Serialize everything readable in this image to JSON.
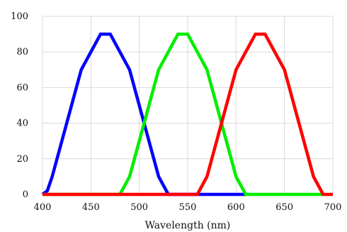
{
  "chart_data": {
    "type": "line",
    "title": "",
    "xlabel": "Wavelength (nm)",
    "ylabel": "",
    "xlim": [
      400,
      700
    ],
    "ylim": [
      0,
      100
    ],
    "x_ticks": [
      400,
      450,
      500,
      550,
      600,
      650,
      700
    ],
    "y_ticks": [
      0,
      20,
      40,
      60,
      80,
      100
    ],
    "grid": true,
    "series": [
      {
        "color": "#0000ff",
        "points": [
          [
            400,
            0
          ],
          [
            405,
            2
          ],
          [
            410,
            10
          ],
          [
            425,
            40
          ],
          [
            440,
            70
          ],
          [
            460,
            90
          ],
          [
            470,
            90
          ],
          [
            490,
            70
          ],
          [
            505,
            40
          ],
          [
            520,
            10
          ],
          [
            530,
            0
          ],
          [
            610,
            0
          ]
        ]
      },
      {
        "color": "#00ee00",
        "points": [
          [
            400,
            0
          ],
          [
            480,
            0
          ],
          [
            490,
            10
          ],
          [
            505,
            40
          ],
          [
            520,
            70
          ],
          [
            540,
            90
          ],
          [
            550,
            90
          ],
          [
            570,
            70
          ],
          [
            585,
            40
          ],
          [
            600,
            10
          ],
          [
            610,
            0
          ],
          [
            690,
            0
          ]
        ]
      },
      {
        "color": "#ff0000",
        "points": [
          [
            400,
            0
          ],
          [
            560,
            0
          ],
          [
            570,
            10
          ],
          [
            585,
            40
          ],
          [
            600,
            70
          ],
          [
            620,
            90
          ],
          [
            630,
            90
          ],
          [
            650,
            70
          ],
          [
            665,
            40
          ],
          [
            680,
            10
          ],
          [
            690,
            0
          ],
          [
            700,
            0
          ]
        ]
      }
    ]
  }
}
